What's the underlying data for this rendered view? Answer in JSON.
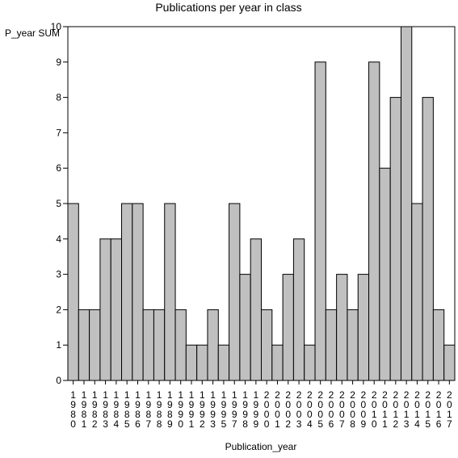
{
  "chart_data": {
    "type": "bar",
    "title": "Publications per year in class",
    "xlabel": "Publication_year",
    "ylabel": "P_year SUM",
    "ylim": [
      0,
      10
    ],
    "yticks": [
      0,
      1,
      2,
      3,
      4,
      5,
      6,
      7,
      8,
      9,
      10
    ],
    "categories": [
      "1980",
      "1981",
      "1982",
      "1983",
      "1984",
      "1985",
      "1986",
      "1987",
      "1988",
      "1989",
      "1990",
      "1991",
      "1992",
      "1993",
      "1995",
      "1997",
      "1998",
      "1999",
      "2000",
      "2001",
      "2002",
      "2003",
      "2004",
      "2005",
      "2006",
      "2007",
      "2008",
      "2009",
      "2010",
      "2011",
      "2012",
      "2013",
      "2014",
      "2015",
      "2016",
      "2017"
    ],
    "values": [
      5,
      2,
      2,
      4,
      4,
      5,
      5,
      2,
      2,
      5,
      2,
      1,
      1,
      2,
      1,
      5,
      3,
      4,
      2,
      1,
      3,
      4,
      1,
      9,
      2,
      3,
      2,
      3,
      9,
      6,
      8,
      10,
      5,
      8,
      2,
      1
    ],
    "grid": false,
    "legend": "none",
    "bar_color": "#c0c0c0",
    "edge_color": "#000000"
  }
}
